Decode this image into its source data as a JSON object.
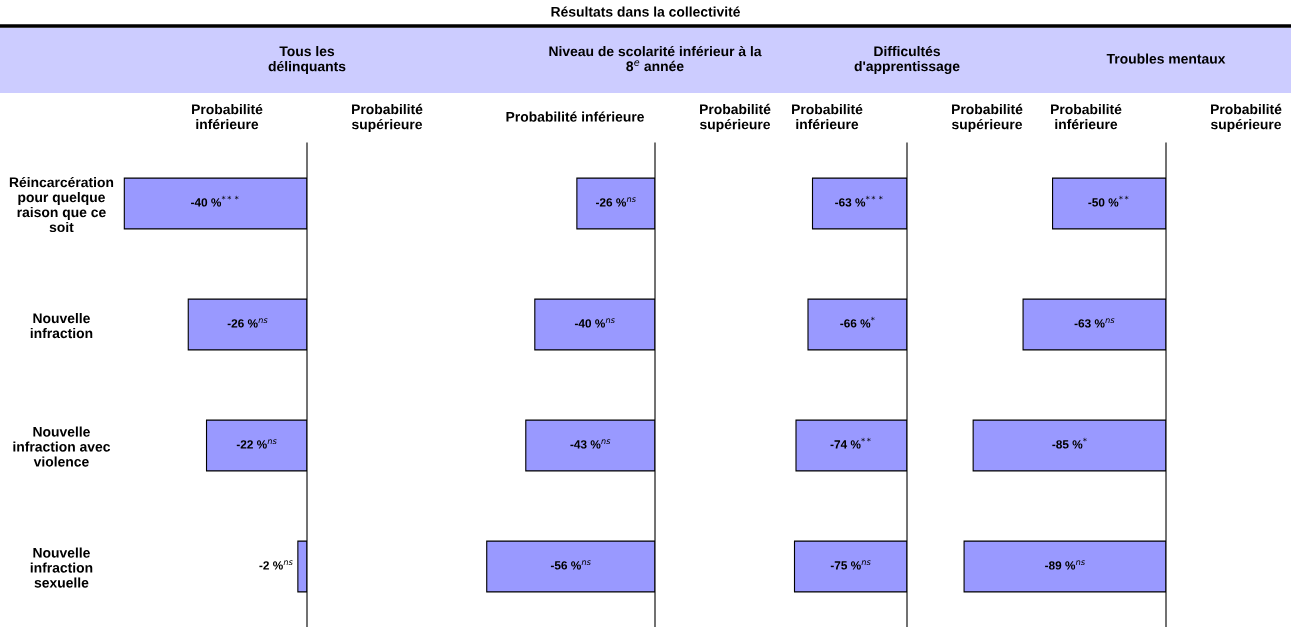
{
  "chart_data": [
    {
      "type": "bar",
      "orientation": "horizontal",
      "subtitle": "Tous les\ndélinquants",
      "annotations": [
        "Probabilité\ninférieure",
        "Probabilité\nsupérieure"
      ],
      "categories": [
        "Réincarcération\npour quelque\nraison que ce\nsoit",
        "Nouvelle\ninfraction",
        "Nouvelle\ninfraction avec\nviolence",
        "Nouvelle\ninfraction\nsexuelle"
      ],
      "values": [
        -40,
        -26,
        -22,
        -2
      ],
      "value_labels": [
        "-40 %$^{***}$",
        "-26 %$^{ns}$",
        "-22 %$^{ns}$",
        "-2 %$^{ns}$"
      ],
      "color": "#9999ff",
      "tick_labels": "y"
    },
    {
      "type": "bar",
      "orientation": "horizontal",
      "title": "Résultats dans la collectivité",
      "subtitle": "Niveau de scolarité inférieur à la\n8$^{e}$ année",
      "annotations": [
        "Probabilité inférieure",
        "Probabilité\nsupérieure"
      ],
      "categories": [
        null,
        null,
        null,
        null
      ],
      "values": [
        -26,
        -40,
        -43,
        -56
      ],
      "value_labels": [
        "-26 %$^{ns}$",
        "-40 %$^{ns}$",
        "-43 %$^{ns}$",
        "-56 %$^{ns}$"
      ],
      "color": "#9999ff",
      "tick_labels": false
    },
    {
      "type": "bar",
      "orientation": "horizontal",
      "subtitle": "Difficultés\nd'apprentissage",
      "annotations": [
        "Probabilité\ninférieure",
        "Probabilité\nsupérieure"
      ],
      "categories": [
        null,
        null,
        null,
        null
      ],
      "values": [
        -63,
        -66,
        -74,
        -75
      ],
      "value_labels": [
        "-63 %$^{***}$",
        "-66 %$^{*}$",
        "-74 %$^{**}$",
        "-75 %$^{ns}$"
      ],
      "color": "#9999ff",
      "tick_labels": false
    },
    {
      "type": "bar",
      "orientation": "horizontal",
      "subtitle": "Troubles mentaux",
      "annotations": [
        "Probabilité\ninférieure",
        "Probabilité\nsupérieure"
      ],
      "categories": [
        null,
        null,
        null,
        null
      ],
      "values": [
        -50,
        -63,
        -85,
        -89
      ],
      "value_labels": [
        "-50 %$^{**}$",
        "-63 %$^{ns}$",
        "-85 %$^{*}$",
        "-89 %$^{ns}$"
      ],
      "color": "#9999ff",
      "tick_labels": false
    }
  ]
}
